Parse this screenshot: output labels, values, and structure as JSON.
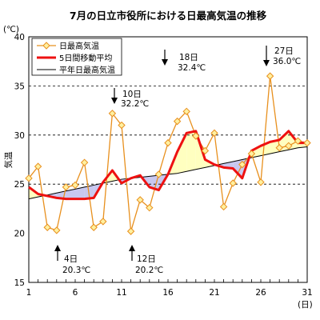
{
  "title": "7月の日立市役所における日最高気温の推移",
  "ylabel": "気温",
  "y_unit": "(℃)",
  "x_unit": "(日)",
  "x_tick_labels": [
    "1",
    "6",
    "11",
    "16",
    "21",
    "26",
    "31"
  ],
  "y_tick_labels": [
    "15",
    "20",
    "25",
    "30",
    "35",
    "40"
  ],
  "legend": {
    "daily_max": "日最高気温",
    "moving_avg": "5日間移動平均",
    "normal": "平年日最高気温"
  },
  "annotations": [
    {
      "day_label": "10日",
      "temp_label": "32.2℃"
    },
    {
      "day_label": "18日",
      "temp_label": "32.4℃"
    },
    {
      "day_label": "27日",
      "temp_label": "36.0℃"
    },
    {
      "day_label": "4日",
      "temp_label": "20.3℃"
    },
    {
      "day_label": "12日",
      "temp_label": "20.2℃"
    }
  ],
  "colors": {
    "daily_max_line": "#e8901e",
    "daily_max_marker_fill": "#fff0a0",
    "daily_max_marker_stroke": "#e8901e",
    "moving_avg": "#ee1111",
    "normal": "#000000",
    "fill_above": "#ffffc0",
    "fill_below": "#c8c8f0",
    "grid": "#000000"
  },
  "chart_data": {
    "type": "line",
    "title": "7月の日立市役所における日最高気温の推移",
    "xlabel": "(日)",
    "ylabel": "気温",
    "xlim": [
      1,
      31
    ],
    "ylim": [
      15,
      40
    ],
    "grid": "dashed horizontal lines at 25, 30, 35",
    "legend_position": "top-left",
    "x": [
      1,
      2,
      3,
      4,
      5,
      6,
      7,
      8,
      9,
      10,
      11,
      12,
      13,
      14,
      15,
      16,
      17,
      18,
      19,
      20,
      21,
      22,
      23,
      24,
      25,
      26,
      27,
      28,
      29,
      30,
      31
    ],
    "series": [
      {
        "name": "日最高気温",
        "values": [
          25.6,
          26.8,
          20.6,
          20.3,
          24.7,
          24.9,
          27.2,
          20.6,
          21.2,
          32.2,
          31.0,
          20.2,
          23.4,
          22.6,
          26.0,
          29.2,
          31.4,
          32.4,
          29.9,
          28.4,
          30.2,
          22.7,
          25.1,
          27.0,
          28.1,
          25.2,
          36.0,
          28.7,
          28.9,
          29.4,
          29.2
        ]
      },
      {
        "name": "5日間移動平均",
        "values": [
          24.7,
          24.0,
          23.8,
          23.6,
          23.5,
          23.5,
          23.5,
          23.6,
          25.2,
          26.4,
          25.1,
          25.6,
          25.9,
          24.7,
          24.4,
          26.0,
          28.3,
          30.2,
          30.4,
          27.5,
          27.0,
          26.7,
          26.6,
          25.6,
          28.4,
          28.9,
          29.3,
          29.5,
          30.4,
          29.2,
          29.2
        ]
      },
      {
        "name": "平年日最高気温",
        "values": [
          23.5,
          23.7,
          23.9,
          24.1,
          24.3,
          24.5,
          24.7,
          24.9,
          25.1,
          25.3,
          25.5,
          25.6,
          25.7,
          25.8,
          25.9,
          26.0,
          26.1,
          26.3,
          26.5,
          26.7,
          26.9,
          27.1,
          27.3,
          27.5,
          27.7,
          27.9,
          28.1,
          28.3,
          28.5,
          28.7,
          28.8
        ]
      }
    ]
  }
}
